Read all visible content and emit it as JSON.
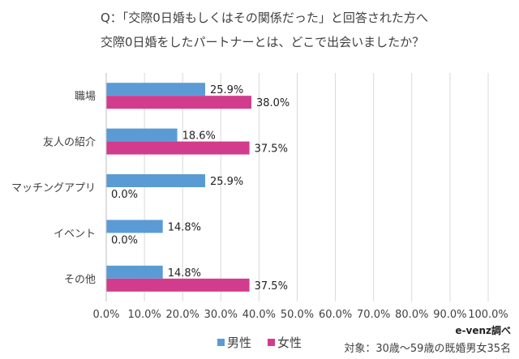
{
  "chart_data": {
    "type": "bar",
    "orientation": "horizontal",
    "title_lines": [
      "Q：「交際0日婚もしくはその関係だった」と回答された方へ",
      "交際0日婚をしたパートナーとは、どこで出会いましたか？"
    ],
    "categories": [
      "職場",
      "友人の紹介",
      "マッチングアプリ",
      "イベント",
      "その他"
    ],
    "series": [
      {
        "name": "男性",
        "color": "#5B9BD5",
        "values": [
          25.9,
          18.6,
          25.9,
          14.8,
          14.8
        ],
        "labels": [
          "25.9%",
          "18.6%",
          "25.9%",
          "14.8%",
          "14.8%"
        ]
      },
      {
        "name": "女性",
        "color": "#D23C8C",
        "values": [
          38.0,
          37.5,
          0.0,
          0.0,
          37.5
        ],
        "labels": [
          "38.0%",
          "37.5%",
          "0.0%",
          "0.0%",
          "37.5%"
        ]
      }
    ],
    "xlim": [
      0,
      100
    ],
    "xticks": [
      "0.0%",
      "10.0%",
      "20.0%",
      "30.0%",
      "40.0%",
      "50.0%",
      "60.0%",
      "70.0%",
      "80.0%",
      "90.0%",
      "100.0%"
    ],
    "grid": true,
    "legend_placement": "bottom",
    "source": "e-venz調べ",
    "note": "対象：30歳～59歳の既婚男女35名"
  }
}
